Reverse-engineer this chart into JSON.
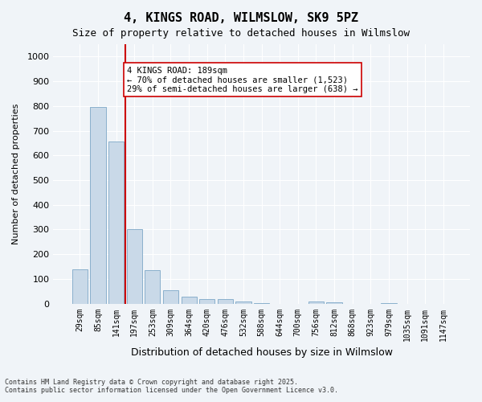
{
  "title": "4, KINGS ROAD, WILMSLOW, SK9 5PZ",
  "subtitle": "Size of property relative to detached houses in Wilmslow",
  "xlabel": "Distribution of detached houses by size in Wilmslow",
  "ylabel": "Number of detached properties",
  "bar_labels": [
    "29sqm",
    "85sqm",
    "141sqm",
    "197sqm",
    "253sqm",
    "309sqm",
    "364sqm",
    "420sqm",
    "476sqm",
    "532sqm",
    "588sqm",
    "644sqm",
    "700sqm",
    "756sqm",
    "812sqm",
    "868sqm",
    "923sqm",
    "979sqm",
    "1035sqm",
    "1091sqm",
    "1147sqm"
  ],
  "bar_values": [
    140,
    795,
    655,
    300,
    135,
    55,
    27,
    18,
    17,
    10,
    2,
    0,
    0,
    8,
    7,
    0,
    0,
    3,
    0,
    0,
    0
  ],
  "bar_color": "#c9d9e8",
  "bar_edgecolor": "#8ab0cc",
  "bar_width": 0.85,
  "vline_x": 3,
  "vline_color": "#cc0000",
  "ylim": [
    0,
    1050
  ],
  "yticks": [
    0,
    100,
    200,
    300,
    400,
    500,
    600,
    700,
    800,
    900,
    1000
  ],
  "annotation_text": "4 KINGS ROAD: 189sqm\n← 70% of detached houses are smaller (1,523)\n29% of semi-detached houses are larger (638) →",
  "annotation_box_color": "#ffffff",
  "annotation_box_edgecolor": "#cc0000",
  "background_color": "#f0f4f8",
  "grid_color": "#ffffff",
  "footer_line1": "Contains HM Land Registry data © Crown copyright and database right 2025.",
  "footer_line2": "Contains public sector information licensed under the Open Government Licence v3.0."
}
